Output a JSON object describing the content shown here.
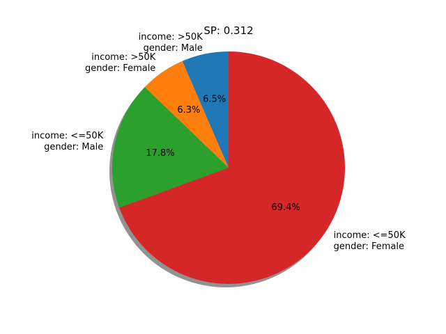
{
  "chart_data": {
    "type": "pie",
    "title": "SP: 0.312",
    "start_angle": "top",
    "direction": "counterclockwise",
    "shadow": true,
    "slices": [
      {
        "label_line1": "income: >50K",
        "label_line2": "gender: Male",
        "value": 6.5,
        "pct_label": "6.5%",
        "color": "#1f77b4"
      },
      {
        "label_line1": "income: >50K",
        "label_line2": "gender: Female",
        "value": 6.3,
        "pct_label": "6.3%",
        "color": "#ff7f0e"
      },
      {
        "label_line1": "income: <=50K",
        "label_line2": "gender: Male",
        "value": 17.8,
        "pct_label": "17.8%",
        "color": "#2ca02c"
      },
      {
        "label_line1": "income: <=50K",
        "label_line2": "gender: Female",
        "value": 69.4,
        "pct_label": "69.4%",
        "color": "#d62728"
      }
    ]
  }
}
